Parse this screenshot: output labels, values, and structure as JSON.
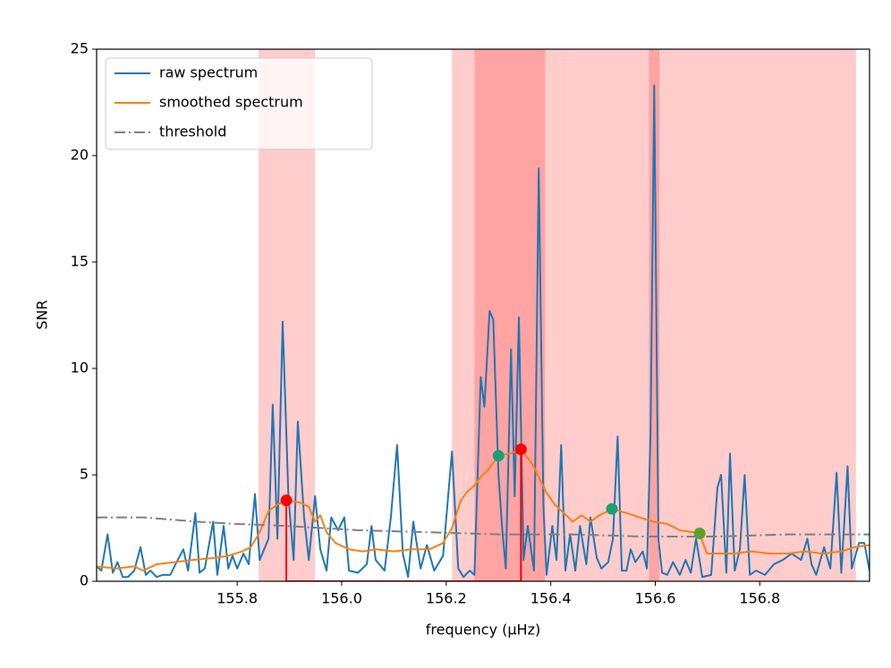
{
  "chart_data": {
    "type": "line",
    "xlabel": "frequency (μHz)",
    "ylabel": "SNR",
    "xlim": [
      155.531,
      157.01
    ],
    "ylim": [
      0,
      25
    ],
    "xticks": [
      155.8,
      {
        "value": 156.0,
        "label": "156.0"
      },
      156.2,
      156.4,
      156.6,
      156.8
    ],
    "yticks": [
      0,
      5,
      10,
      15,
      20,
      25
    ],
    "legend": "upper left",
    "regions": {
      "color": "#ff0000",
      "spans": [
        [
          155.841,
          155.949
        ],
        [
          156.211,
          156.389
        ],
        [
          156.254,
          156.432
        ],
        [
          156.432,
          156.608
        ],
        [
          156.588,
          156.984
        ]
      ]
    },
    "series": [
      {
        "name": "raw spectrum",
        "color": "#1f77b4",
        "style": "solid",
        "x": [
          155.531,
          155.54,
          155.552,
          155.562,
          155.571,
          155.581,
          155.591,
          155.603,
          155.615,
          155.625,
          155.634,
          155.646,
          155.658,
          155.672,
          155.682,
          155.697,
          155.706,
          155.72,
          155.728,
          155.738,
          155.754,
          155.762,
          155.774,
          155.783,
          155.791,
          155.8,
          155.812,
          155.822,
          155.834,
          155.843,
          155.86,
          155.868,
          155.877,
          155.887,
          155.898,
          155.908,
          155.916,
          155.928,
          155.937,
          155.949,
          155.959,
          155.971,
          155.98,
          155.993,
          156.005,
          156.014,
          156.031,
          156.048,
          156.057,
          156.065,
          156.082,
          156.094,
          156.106,
          156.117,
          156.127,
          156.137,
          156.151,
          156.163,
          156.177,
          156.194,
          156.211,
          156.223,
          156.233,
          156.245,
          156.254,
          156.266,
          156.273,
          156.283,
          156.29,
          156.3,
          156.307,
          156.314,
          156.324,
          156.331,
          156.339,
          156.348,
          156.356,
          156.368,
          156.377,
          156.386,
          156.392,
          156.403,
          156.411,
          156.42,
          156.428,
          156.437,
          156.447,
          156.456,
          156.468,
          156.476,
          156.488,
          156.497,
          156.51,
          156.519,
          156.528,
          156.536,
          156.545,
          156.553,
          156.562,
          156.576,
          156.584,
          156.591,
          156.598,
          156.606,
          156.613,
          156.623,
          156.634,
          156.647,
          156.658,
          156.668,
          156.678,
          156.69,
          156.707,
          156.719,
          156.726,
          156.736,
          156.743,
          156.752,
          156.762,
          156.771,
          156.781,
          156.793,
          156.81,
          156.827,
          156.844,
          156.861,
          156.879,
          156.891,
          156.899,
          156.908,
          156.923,
          156.935,
          156.947,
          156.956,
          156.968,
          156.976,
          156.99,
          157.0,
          157.01
        ],
        "values": [
          0.7,
          0.5,
          2.2,
          0.4,
          0.9,
          0.2,
          0.2,
          0.5,
          1.6,
          0.3,
          0.5,
          0.2,
          0.3,
          0.3,
          0.8,
          1.5,
          0.5,
          3.2,
          0.4,
          0.6,
          2.8,
          0.3,
          2.6,
          0.6,
          1.2,
          0.6,
          1.3,
          0.8,
          4.1,
          1.0,
          2.0,
          8.3,
          2.0,
          12.2,
          4.0,
          1.0,
          7.5,
          3.0,
          1.0,
          4.0,
          1.5,
          0.5,
          3.0,
          2.4,
          3.0,
          0.5,
          0.4,
          0.8,
          2.6,
          1.0,
          0.5,
          3.0,
          6.4,
          1.3,
          0.2,
          2.8,
          0.6,
          1.7,
          0.5,
          1.2,
          6.1,
          0.6,
          0.2,
          0.5,
          0.3,
          9.6,
          8.2,
          12.7,
          12.3,
          5.0,
          2.5,
          0.6,
          10.9,
          4.0,
          12.4,
          1.0,
          2.6,
          0.5,
          19.4,
          3.5,
          0.3,
          2.6,
          1.0,
          6.4,
          0.5,
          2.2,
          0.5,
          2.6,
          0.8,
          3.0,
          1.1,
          0.6,
          0.9,
          2.0,
          6.8,
          0.5,
          0.5,
          1.5,
          0.9,
          1.4,
          0.6,
          7.0,
          23.3,
          2.0,
          0.4,
          0.3,
          0.9,
          0.3,
          1.0,
          0.4,
          2.0,
          0.2,
          0.3,
          4.4,
          5.0,
          0.4,
          6.0,
          0.5,
          1.5,
          5.0,
          0.3,
          0.5,
          0.3,
          0.8,
          1.0,
          1.3,
          1.0,
          2.0,
          0.8,
          0.3,
          1.6,
          0.6,
          5.1,
          0.4,
          5.4,
          0.6,
          1.8,
          1.8,
          0.5
        ]
      },
      {
        "name": "smoothed spectrum",
        "color": "#ff7f0e",
        "style": "solid",
        "x": [
          155.531,
          155.569,
          155.603,
          155.62,
          155.646,
          155.68,
          155.714,
          155.757,
          155.783,
          155.809,
          155.826,
          155.843,
          155.86,
          155.877,
          155.894,
          155.92,
          155.937,
          155.949,
          155.959,
          155.971,
          155.988,
          156.014,
          156.04,
          156.065,
          156.1,
          156.134,
          156.168,
          156.194,
          156.211,
          156.228,
          156.24,
          156.254,
          156.266,
          156.279,
          156.3,
          156.322,
          156.343,
          156.365,
          156.379,
          156.391,
          156.408,
          156.425,
          156.442,
          156.459,
          156.476,
          156.493,
          156.519,
          156.545,
          156.57,
          156.596,
          156.622,
          156.647,
          156.673,
          156.685,
          156.699,
          156.725,
          156.75,
          156.784,
          156.819,
          156.853,
          156.887,
          156.921,
          156.956,
          156.981,
          157.01
        ],
        "values": [
          0.7,
          0.6,
          0.7,
          0.5,
          0.8,
          0.9,
          1.0,
          1.1,
          1.2,
          1.4,
          1.6,
          2.3,
          3.3,
          3.6,
          3.8,
          3.7,
          3.5,
          2.8,
          3.1,
          2.3,
          1.8,
          1.5,
          1.4,
          1.5,
          1.4,
          1.5,
          1.5,
          1.8,
          2.5,
          3.8,
          4.2,
          4.5,
          4.9,
          5.2,
          5.9,
          6.0,
          6.2,
          5.5,
          4.8,
          4.2,
          3.6,
          3.2,
          2.8,
          3.1,
          2.8,
          3.1,
          3.4,
          3.2,
          3.0,
          2.8,
          2.7,
          2.4,
          2.3,
          2.2,
          1.3,
          1.3,
          1.3,
          1.4,
          1.3,
          1.3,
          1.4,
          1.3,
          1.4,
          1.6,
          1.7
        ]
      },
      {
        "name": "threshold",
        "color": "#7f7f7f",
        "style": "dashdot",
        "x": [
          155.531,
          155.62,
          155.723,
          155.791,
          155.894,
          156.031,
          156.168,
          156.305,
          156.442,
          156.579,
          156.716,
          156.853,
          157.01
        ],
        "values": [
          3.0,
          3.0,
          2.8,
          2.7,
          2.6,
          2.4,
          2.3,
          2.2,
          2.2,
          2.1,
          2.1,
          2.2,
          2.2
        ]
      }
    ],
    "peaks": {
      "color": "#ff0000",
      "x": [
        155.894,
        156.343
      ],
      "values": [
        3.8,
        6.2
      ]
    },
    "points": [
      {
        "color": "#1b9e77",
        "x": 156.3,
        "value": 5.9
      },
      {
        "color": "#1b9e77",
        "x": 156.517,
        "value": 3.4
      },
      {
        "color": "#5aa02c",
        "x": 156.685,
        "value": 2.25
      }
    ]
  }
}
